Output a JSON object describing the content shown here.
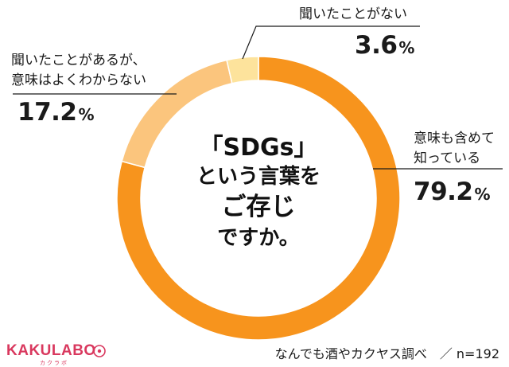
{
  "chart_data": {
    "type": "pie",
    "variant": "donut",
    "categories": [
      "意味も含めて知っている",
      "聞いたことがあるが、意味はよくわからない",
      "聞いたことがない"
    ],
    "values": [
      79.2,
      17.2,
      3.6
    ],
    "unit": "%",
    "colors": [
      "#f7941d",
      "#fbc57d",
      "#fde39c"
    ],
    "title": "「SDGs」という言葉をご存じですか。",
    "n": "n=192"
  },
  "labels": {
    "known_line1": "意味も含めて",
    "known_line2": "知っている",
    "known_pct": "79.2",
    "heard_line1": "聞いたことがあるが、",
    "heard_line2": "意味はよくわからない",
    "heard_pct": "17.2",
    "never_line1": "聞いたことがない",
    "never_pct": "3.6",
    "unit": "%"
  },
  "center": {
    "line1": "「SDGs」",
    "line2": "という言葉を",
    "line3": "ご存じ",
    "line4": "ですか。"
  },
  "footer": {
    "logo": "KAKULABO",
    "logo_sub": "カクラボ",
    "source": "なんでも酒やカクヤス調べ　／ n=192"
  }
}
